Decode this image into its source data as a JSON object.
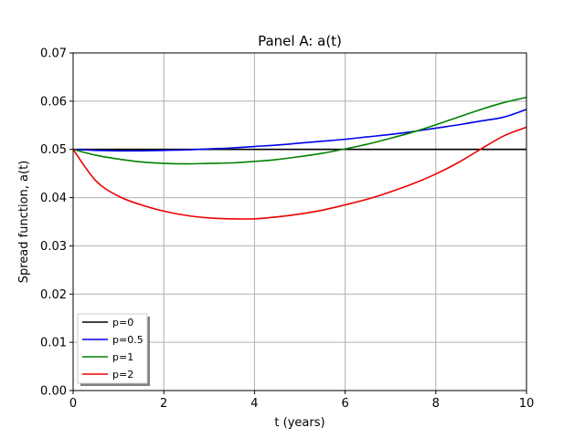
{
  "chart_data": {
    "type": "line",
    "title": "Panel A: a(t)",
    "xlabel": "t (years)",
    "ylabel": "Spread function, a(t)",
    "xlim": [
      0,
      10
    ],
    "ylim": [
      0,
      0.07
    ],
    "x_ticks": [
      0,
      2,
      4,
      6,
      8,
      10
    ],
    "x_tick_labels": [
      "0",
      "2",
      "4",
      "6",
      "8",
      "10"
    ],
    "y_ticks": [
      0,
      0.01,
      0.02,
      0.03,
      0.04,
      0.05,
      0.06,
      0.07
    ],
    "y_tick_labels": [
      "0.00",
      "0.01",
      "0.02",
      "0.03",
      "0.04",
      "0.05",
      "0.06",
      "0.07"
    ],
    "grid": true,
    "legend_position": "lower-left",
    "x": [
      0,
      0.5,
      1,
      1.5,
      2,
      2.5,
      3,
      3.5,
      4,
      4.5,
      5,
      5.5,
      6,
      6.5,
      7,
      7.5,
      8,
      8.5,
      9,
      9.5,
      10
    ],
    "series": [
      {
        "name": "p=0",
        "color": "#000000",
        "values": [
          0.05,
          0.05,
          0.05,
          0.05,
          0.05,
          0.05,
          0.05,
          0.05,
          0.05,
          0.05,
          0.05,
          0.05,
          0.05,
          0.05,
          0.05,
          0.05,
          0.05,
          0.05,
          0.05,
          0.05,
          0.05
        ]
      },
      {
        "name": "p=0.5",
        "color": "#0000ee",
        "values": [
          0.05,
          0.0498,
          0.0497,
          0.0497,
          0.0498,
          0.0499,
          0.0501,
          0.0503,
          0.0506,
          0.0509,
          0.0513,
          0.0517,
          0.0521,
          0.0526,
          0.0531,
          0.0537,
          0.0544,
          0.0551,
          0.0559,
          0.0567,
          0.0583
        ]
      },
      {
        "name": "p=1",
        "color": "#008000",
        "values": [
          0.05,
          0.0488,
          0.048,
          0.0474,
          0.0471,
          0.047,
          0.0471,
          0.0472,
          0.0475,
          0.0479,
          0.0485,
          0.0492,
          0.0501,
          0.0511,
          0.0523,
          0.0536,
          0.0551,
          0.0567,
          0.0583,
          0.0597,
          0.0608
        ]
      },
      {
        "name": "p=2",
        "color": "#ee0000",
        "values": [
          0.05,
          0.0435,
          0.0403,
          0.0385,
          0.0372,
          0.0363,
          0.0358,
          0.0356,
          0.0356,
          0.036,
          0.0366,
          0.0374,
          0.0385,
          0.0397,
          0.0412,
          0.0429,
          0.0449,
          0.0473,
          0.0501,
          0.0528,
          0.0546
        ]
      }
    ]
  }
}
